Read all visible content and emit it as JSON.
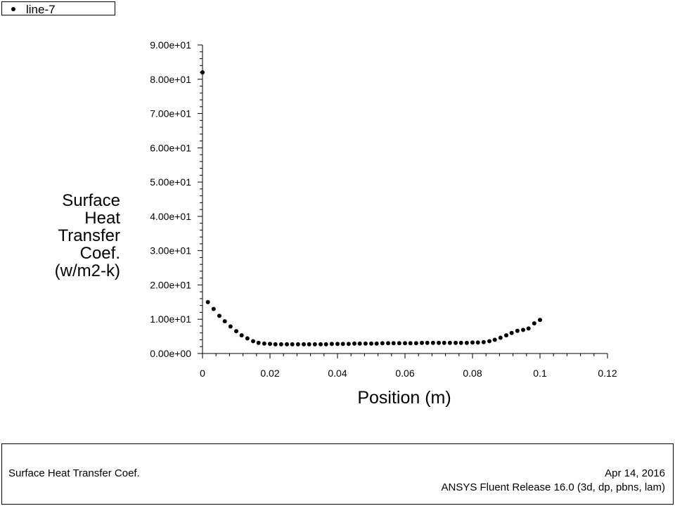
{
  "legend": {
    "label": "line-7"
  },
  "footer": {
    "title": "Surface Heat Transfer Coef.",
    "date": "Apr 14, 2016",
    "release": "ANSYS Fluent Release 16.0 (3d, dp, pbns, lam)"
  },
  "chart_data": {
    "type": "scatter",
    "xlabel": "Position (m)",
    "ylabel_lines": [
      "Surface",
      "Heat",
      "Transfer",
      "Coef.",
      "(w/m2-k)"
    ],
    "xlim": [
      0,
      0.12
    ],
    "ylim": [
      0,
      90
    ],
    "x_ticks": [
      0,
      0.02,
      0.04,
      0.06,
      0.08,
      0.1,
      0.12
    ],
    "x_tick_labels": [
      "0",
      "0.02",
      "0.04",
      "0.06",
      "0.08",
      "0.1",
      "0.12"
    ],
    "y_ticks": [
      0,
      10,
      20,
      30,
      40,
      50,
      60,
      70,
      80,
      90
    ],
    "y_tick_labels": [
      "0.00e+00",
      "1.00e+01",
      "2.00e+01",
      "3.00e+01",
      "4.00e+01",
      "5.00e+01",
      "6.00e+01",
      "7.00e+01",
      "8.00e+01",
      "9.00e+01"
    ],
    "grid": false,
    "legend_position": "top-left",
    "marker_color": "#000000",
    "series": [
      {
        "name": "line-7",
        "x": [
          0,
          0.0016,
          0.0033,
          0.005,
          0.0066,
          0.0083,
          0.01,
          0.0116,
          0.0133,
          0.015,
          0.0166,
          0.0183,
          0.02,
          0.0216,
          0.0233,
          0.025,
          0.0266,
          0.0283,
          0.03,
          0.0316,
          0.0333,
          0.035,
          0.0366,
          0.0383,
          0.04,
          0.0416,
          0.0433,
          0.045,
          0.0466,
          0.0483,
          0.05,
          0.0516,
          0.0533,
          0.055,
          0.0566,
          0.0583,
          0.06,
          0.0616,
          0.0633,
          0.065,
          0.0666,
          0.0683,
          0.07,
          0.0716,
          0.0733,
          0.075,
          0.0766,
          0.0783,
          0.08,
          0.0816,
          0.0833,
          0.085,
          0.0866,
          0.0883,
          0.09,
          0.0916,
          0.0933,
          0.095,
          0.0966,
          0.0983,
          0.1
        ],
        "y": [
          82,
          15,
          13,
          11,
          9.4,
          7.9,
          6.5,
          5.3,
          4.4,
          3.6,
          3.1,
          2.9,
          2.8,
          2.7,
          2.7,
          2.7,
          2.7,
          2.7,
          2.7,
          2.7,
          2.7,
          2.7,
          2.7,
          2.8,
          2.8,
          2.8,
          2.8,
          2.9,
          2.9,
          2.9,
          2.9,
          2.9,
          3.0,
          3.0,
          3.0,
          3.0,
          3.0,
          3.0,
          3.0,
          3.1,
          3.1,
          3.1,
          3.1,
          3.1,
          3.1,
          3.1,
          3.1,
          3.1,
          3.2,
          3.2,
          3.3,
          3.6,
          4.0,
          4.6,
          5.3,
          6.0,
          6.6,
          6.9,
          7.3,
          8.8,
          9.8
        ]
      }
    ]
  }
}
